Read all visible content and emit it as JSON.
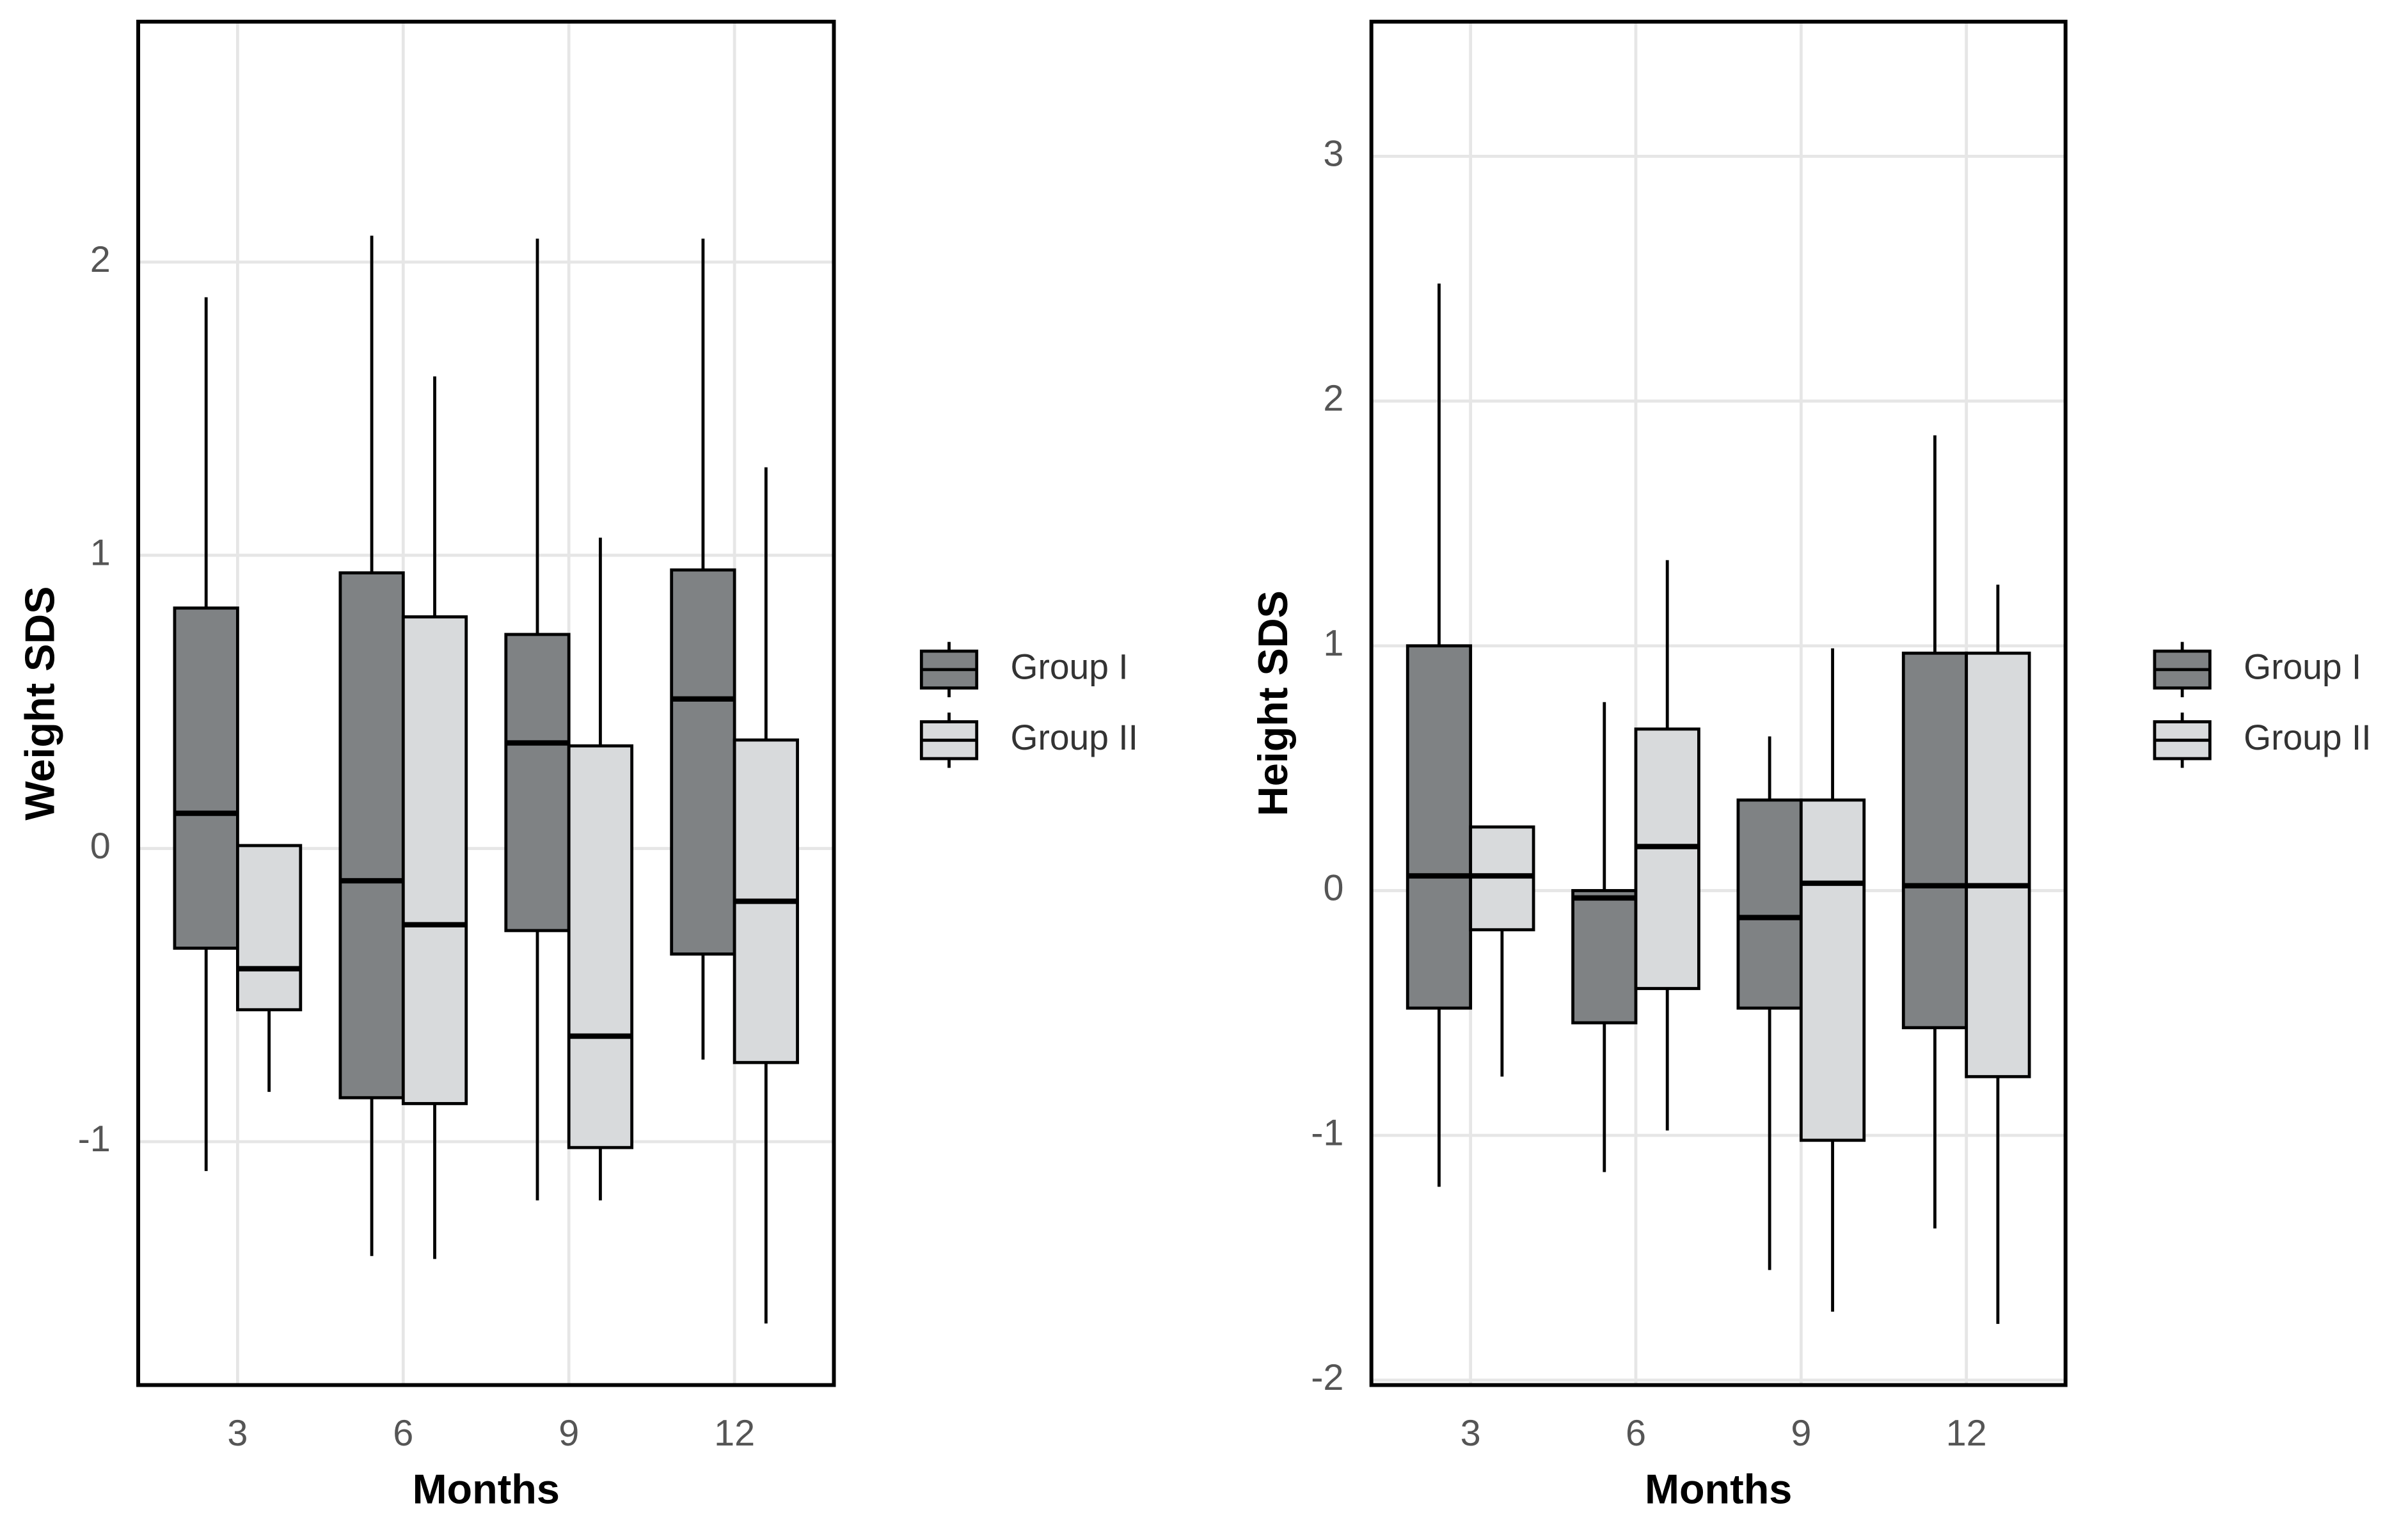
{
  "chart_data": [
    {
      "type": "box",
      "x_label": "Months",
      "y_label": "Weight SDS",
      "categories": [
        "3",
        "6",
        "9",
        "12"
      ],
      "ylim": [
        -1.83,
        2.82
      ],
      "yticks": [
        -1,
        0,
        1,
        2
      ],
      "grid": true,
      "series": [
        {
          "name": "Group I",
          "color": "#7f8284",
          "values": [
            {
              "min": -1.1,
              "q1": -0.34,
              "median": 0.12,
              "q3": 0.82,
              "max": 1.88
            },
            {
              "min": -1.39,
              "q1": -0.85,
              "median": -0.11,
              "q3": 0.94,
              "max": 2.09
            },
            {
              "min": -1.2,
              "q1": -0.28,
              "median": 0.36,
              "q3": 0.73,
              "max": 2.08
            },
            {
              "min": -0.72,
              "q1": -0.36,
              "median": 0.51,
              "q3": 0.95,
              "max": 2.08
            }
          ]
        },
        {
          "name": "Group II",
          "color": "#d8dadc",
          "values": [
            {
              "min": -0.83,
              "q1": -0.55,
              "median": -0.41,
              "q3": 0.01,
              "max": 0.01
            },
            {
              "min": -1.4,
              "q1": -0.87,
              "median": -0.26,
              "q3": 0.79,
              "max": 1.61
            },
            {
              "min": -1.2,
              "q1": -1.02,
              "median": -0.64,
              "q3": 0.35,
              "max": 1.06
            },
            {
              "min": -1.62,
              "q1": -0.73,
              "median": -0.18,
              "q3": 0.37,
              "max": 1.3
            }
          ]
        }
      ]
    },
    {
      "type": "box",
      "x_label": "Months",
      "y_label": "Height SDS",
      "categories": [
        "3",
        "6",
        "9",
        "12"
      ],
      "ylim": [
        -2.02,
        3.55
      ],
      "yticks": [
        -2,
        -1,
        0,
        1,
        2,
        3
      ],
      "grid": true,
      "series": [
        {
          "name": "Group I",
          "color": "#7f8284",
          "values": [
            {
              "min": -1.21,
              "q1": -0.48,
              "median": 0.06,
              "q3": 1.0,
              "max": 2.48
            },
            {
              "min": -1.15,
              "q1": -0.54,
              "median": -0.03,
              "q3": 0.0,
              "max": 0.77
            },
            {
              "min": -1.55,
              "q1": -0.48,
              "median": -0.11,
              "q3": 0.37,
              "max": 0.63
            },
            {
              "min": -1.38,
              "q1": -0.56,
              "median": 0.02,
              "q3": 0.97,
              "max": 1.86
            }
          ]
        },
        {
          "name": "Group II",
          "color": "#d8dadc",
          "values": [
            {
              "min": -0.76,
              "q1": -0.16,
              "median": 0.06,
              "q3": 0.26,
              "max": 0.26
            },
            {
              "min": -0.98,
              "q1": -0.4,
              "median": 0.18,
              "q3": 0.66,
              "max": 1.35
            },
            {
              "min": -1.72,
              "q1": -1.02,
              "median": 0.03,
              "q3": 0.37,
              "max": 0.99
            },
            {
              "min": -1.77,
              "q1": -0.76,
              "median": 0.02,
              "q3": 0.97,
              "max": 1.25
            }
          ]
        }
      ]
    }
  ]
}
